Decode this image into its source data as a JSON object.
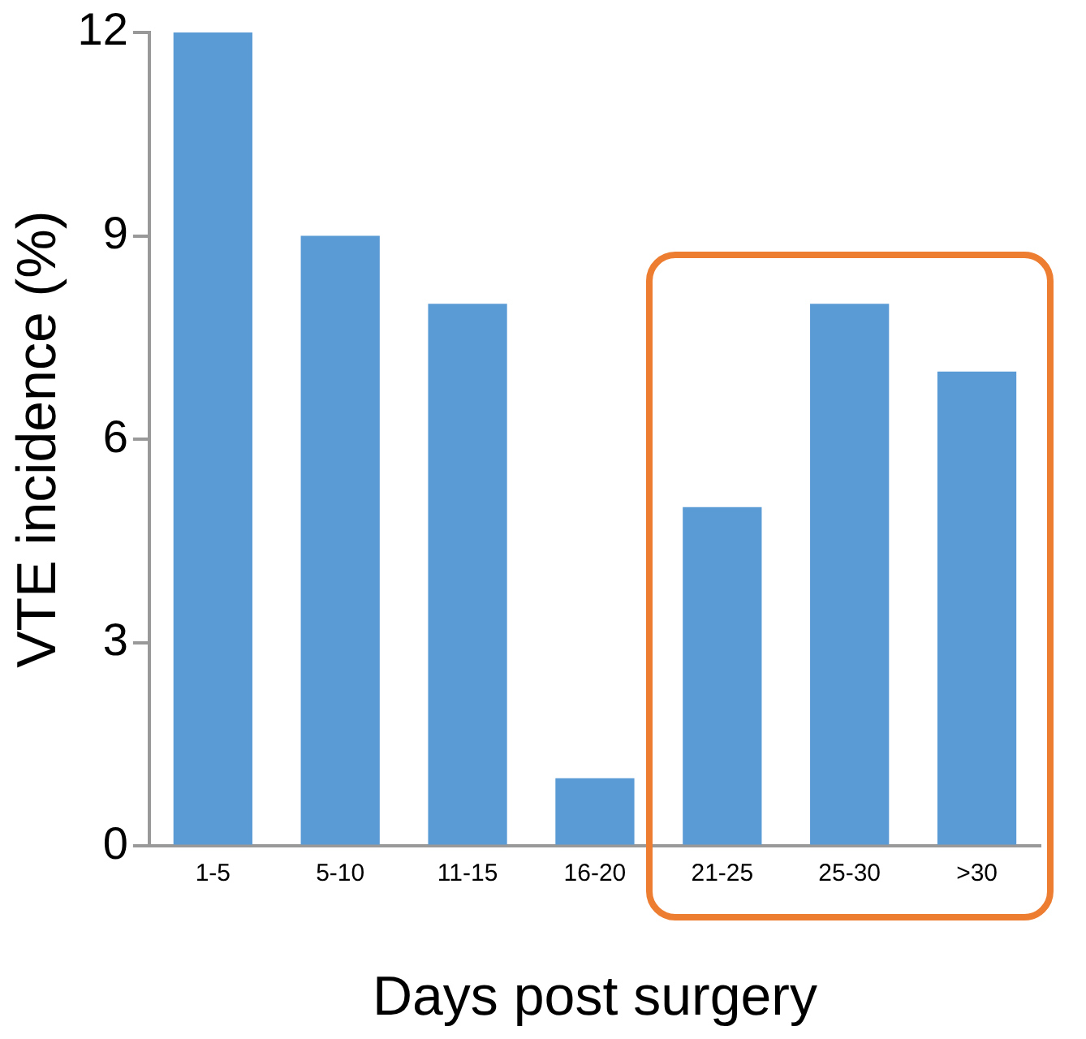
{
  "chart_data": {
    "type": "bar",
    "xlabel": "Days post surgery",
    "ylabel": "VTE incidence (%)",
    "categories": [
      "1-5",
      "5-10",
      "11-15",
      "16-20",
      "21-25",
      "25-30",
      ">30"
    ],
    "values": [
      12,
      9,
      8,
      1,
      5,
      8,
      7
    ],
    "color": "#5b9bd5",
    "ylim": [
      0,
      12
    ],
    "yticks": [
      0,
      3,
      6,
      9,
      12
    ],
    "grid": false,
    "legend": false
  }
}
